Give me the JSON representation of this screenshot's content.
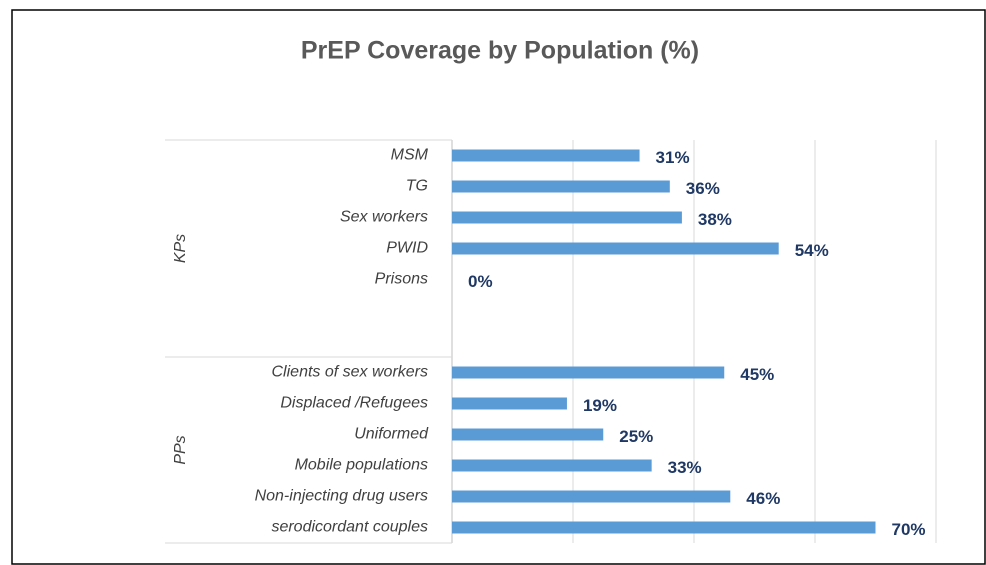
{
  "chart_data": {
    "type": "bar",
    "orientation": "horizontal",
    "title": "PrEP Coverage by Population (%)",
    "color": "#5b9bd5",
    "groups": [
      {
        "name": "KPs",
        "categories": [
          "MSM",
          "TG",
          "Sex workers",
          "PWID",
          "Prisons",
          null,
          null
        ],
        "values": [
          31,
          36,
          38,
          54,
          0,
          null,
          null
        ],
        "value_labels": [
          "31%",
          "36%",
          "38%",
          "54%",
          "0%",
          null,
          null
        ]
      },
      {
        "name": "PPs",
        "categories": [
          "Clients of sex workers",
          "Displaced /Refugees",
          "Uniformed",
          "Mobile populations",
          "Non-injecting drug users",
          "serodicordant couples"
        ],
        "values": [
          45,
          19,
          25,
          33,
          46,
          70
        ],
        "value_labels": [
          "45%",
          "19%",
          "25%",
          "33%",
          "46%",
          "70%"
        ]
      }
    ],
    "xlim": [
      0,
      80
    ],
    "xticks": [
      0,
      20,
      40,
      60,
      80
    ],
    "grid": true
  }
}
